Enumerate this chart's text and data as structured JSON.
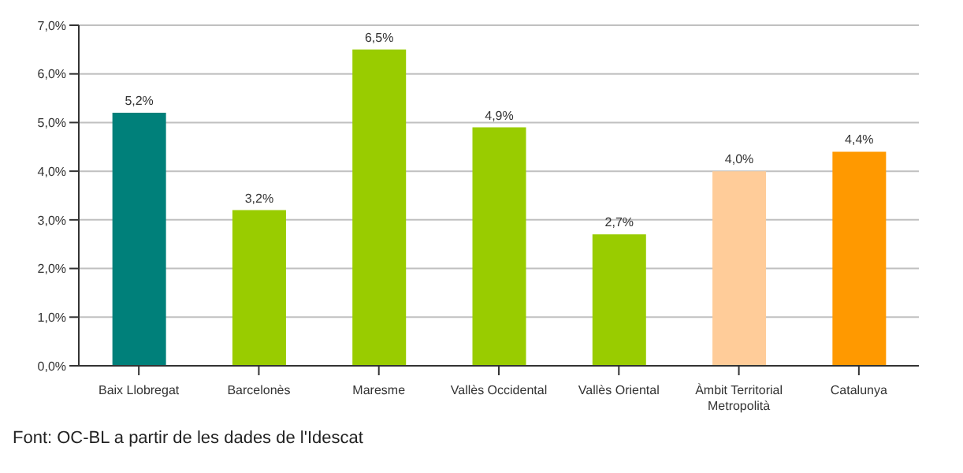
{
  "chart_data": {
    "type": "bar",
    "categories": [
      "Baix Llobregat",
      "Barcelonès",
      "Maresme",
      "Vallès Occidental",
      "Vallès Oriental",
      "Àmbit Territorial Metropolità",
      "Catalunya"
    ],
    "values": [
      5.2,
      3.2,
      6.5,
      4.9,
      2.7,
      4.0,
      4.4
    ],
    "colors": [
      "#00807a",
      "#99cc00",
      "#99cc00",
      "#99cc00",
      "#99cc00",
      "#ffcc99",
      "#ff9900"
    ],
    "value_labels": [
      "5,2%",
      "3,2%",
      "6,5%",
      "4,9%",
      "2,7%",
      "4,0%",
      "4,4%"
    ],
    "ylim": [
      0,
      7
    ],
    "yticks": [
      {
        "value": 0,
        "label": "0,0%"
      },
      {
        "value": 1,
        "label": "1,0%"
      },
      {
        "value": 2,
        "label": "2,0%"
      },
      {
        "value": 3,
        "label": "3,0%"
      },
      {
        "value": 4,
        "label": "4,0%"
      },
      {
        "value": 5,
        "label": "5,0%"
      },
      {
        "value": 6,
        "label": "6,0%"
      },
      {
        "value": 7,
        "label": "7,0%"
      }
    ],
    "grid": "y",
    "annotations": [
      "Font: OC-BL a partir de les dades de l'Idescat"
    ]
  }
}
